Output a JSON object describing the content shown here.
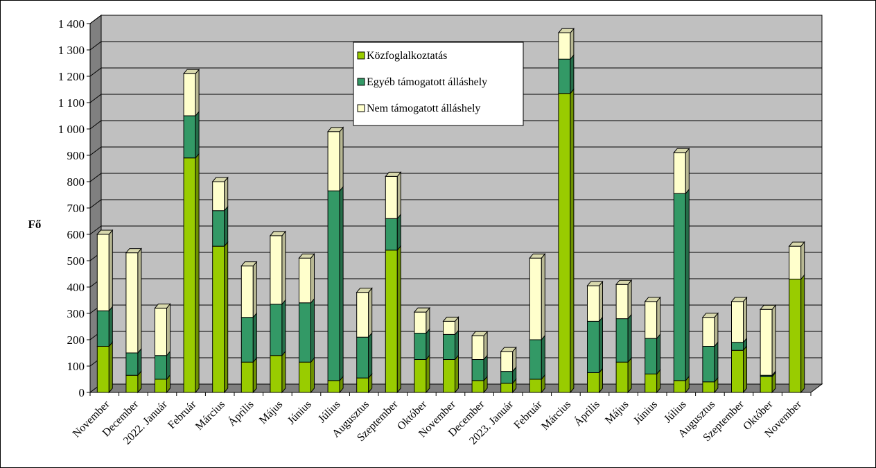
{
  "chart_data": {
    "type": "bar",
    "stacked": true,
    "three_d": true,
    "ylabel": "Fő",
    "xlabel": "",
    "ylim": [
      0,
      1400
    ],
    "yticks": [
      0,
      100,
      200,
      300,
      400,
      500,
      600,
      700,
      800,
      900,
      1000,
      1100,
      1200,
      1300,
      1400
    ],
    "ytick_labels": [
      "0",
      "100",
      "200",
      "300",
      "400",
      "500",
      "600",
      "700",
      "800",
      "900",
      "1 000",
      "1 100",
      "1 200",
      "1 300",
      "1 400"
    ],
    "grid": true,
    "legend_position": "top-center",
    "categories": [
      "November",
      "December",
      "2022. Január",
      "Február",
      "Március",
      "Április",
      "Május",
      "Június",
      "Július",
      "Augusztus",
      "Szeptember",
      "Október",
      "November",
      "December",
      "2023. Január",
      "Február",
      "Március",
      "Április",
      "Május",
      "Június",
      "Július",
      "Augusztus",
      "Szeptember",
      "Október",
      "November"
    ],
    "series": [
      {
        "name": "Közfoglalkoztatás",
        "color": "#99cc00",
        "values": [
          175,
          65,
          50,
          890,
          555,
          115,
          140,
          115,
          45,
          55,
          540,
          125,
          125,
          45,
          35,
          50,
          1135,
          75,
          115,
          70,
          45,
          40,
          160,
          60,
          430
        ]
      },
      {
        "name": "Egyéb támogatott álláshely",
        "color": "#339966",
        "values": [
          135,
          85,
          90,
          160,
          135,
          170,
          195,
          225,
          720,
          155,
          120,
          100,
          95,
          80,
          45,
          150,
          130,
          195,
          165,
          135,
          710,
          135,
          30,
          5,
          0
        ]
      },
      {
        "name": "Nem támogatott álláshely",
        "color": "#ffffcc",
        "values": [
          290,
          380,
          180,
          160,
          110,
          195,
          260,
          170,
          225,
          170,
          160,
          80,
          50,
          90,
          75,
          310,
          100,
          135,
          130,
          140,
          155,
          110,
          155,
          250,
          125
        ]
      }
    ]
  }
}
